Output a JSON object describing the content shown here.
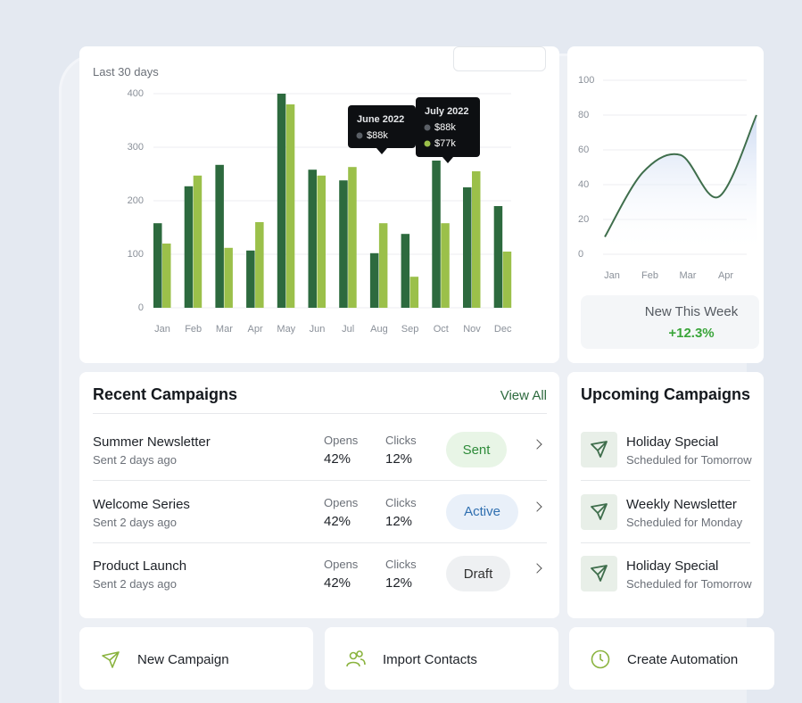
{
  "chart_data": [
    {
      "type": "bar",
      "subtitle": "Last 30 days",
      "categories": [
        "Jan",
        "Feb",
        "Mar",
        "Apr",
        "May",
        "Jun",
        "Jul",
        "Aug",
        "Sep",
        "Oct",
        "Nov",
        "Dec"
      ],
      "series": [
        {
          "color": "#2d6a3e",
          "values": [
            158,
            227,
            267,
            107,
            400,
            258,
            238,
            102,
            138,
            275,
            225,
            190
          ]
        },
        {
          "color": "#9bc04a",
          "values": [
            120,
            247,
            112,
            160,
            380,
            247,
            263,
            158,
            58,
            158,
            255,
            105
          ]
        }
      ],
      "ylim": [
        0,
        400
      ],
      "yticks": [
        0,
        100,
        200,
        300,
        400
      ],
      "grid": true,
      "tooltips": [
        {
          "title": "June 2022",
          "items": [
            "$88k"
          ]
        },
        {
          "title": "July 2022",
          "items": [
            "$88k",
            "$77k"
          ]
        }
      ]
    },
    {
      "type": "line",
      "categories": [
        "Jan",
        "Feb",
        "Mar",
        "Apr",
        null
      ],
      "series": [
        {
          "color": "#3f6e4c",
          "values": [
            10,
            47,
            57,
            33,
            80
          ]
        }
      ],
      "ylim": [
        0,
        100
      ],
      "yticks": [
        0,
        20,
        40,
        60,
        80,
        100
      ],
      "grid": true
    }
  ],
  "stat": {
    "label": "New This Week",
    "value": "+12.3%"
  },
  "recent": {
    "title": "Recent Campaigns",
    "link": "View All",
    "opens_label": "Opens",
    "clicks_label": "Clicks",
    "rows": [
      {
        "name": "Summer Newsletter",
        "sent": "Sent 2 days ago",
        "opens": "42%",
        "clicks": "12%",
        "status": "Sent"
      },
      {
        "name": "Welcome Series",
        "sent": "Sent 2 days ago",
        "opens": "42%",
        "clicks": "12%",
        "status": "Active"
      },
      {
        "name": "Product Launch",
        "sent": "Sent 2 days ago",
        "opens": "42%",
        "clicks": "12%",
        "status": "Draft"
      }
    ]
  },
  "upcoming": {
    "title": "Upcoming Campaigns",
    "rows": [
      {
        "name": "Holiday Special",
        "when": "Scheduled for Tomorrow"
      },
      {
        "name": "Weekly Newsletter",
        "when": "Scheduled for Monday"
      },
      {
        "name": "Holiday Special",
        "when": "Scheduled for Tomorrow"
      }
    ]
  },
  "actions": [
    "New Campaign",
    "Import Contacts",
    "Create Automation"
  ]
}
